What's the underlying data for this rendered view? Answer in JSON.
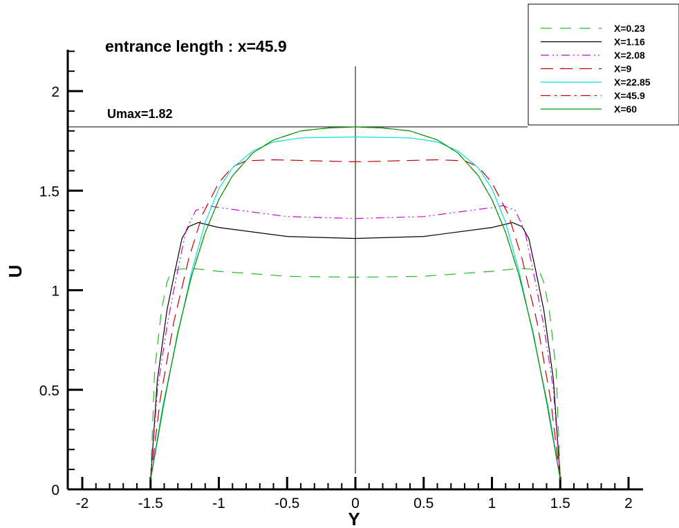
{
  "chart_data": {
    "type": "line",
    "title": "entrance length : x=45.9",
    "xlabel": "Y",
    "ylabel": "U",
    "xlim": [
      -2.0,
      2.0
    ],
    "ylim": [
      0,
      2.0
    ],
    "xticks": [
      "-2",
      "-1.5",
      "-1",
      "-0.5",
      "0",
      "0.5",
      "1",
      "1.5",
      "2"
    ],
    "yticks": [
      "0",
      "0.5",
      "1",
      "1.5",
      "2"
    ],
    "grid": false,
    "legend_position": "top-right",
    "annotations": [
      {
        "text": "Umax=1.82",
        "y": 1.82
      }
    ],
    "series": [
      {
        "name": "X=0.23",
        "color": "#22bb22",
        "dash": "dashed",
        "points": [
          [
            -1.5,
            0.05
          ],
          [
            -1.47,
            0.6
          ],
          [
            -1.42,
            0.9
          ],
          [
            -1.38,
            1.04
          ],
          [
            -1.35,
            1.09
          ],
          [
            -1.3,
            1.105
          ],
          [
            -1.2,
            1.11
          ],
          [
            -1.0,
            1.095
          ],
          [
            -0.5,
            1.07
          ],
          [
            0,
            1.065
          ],
          [
            0.5,
            1.07
          ],
          [
            1.0,
            1.095
          ],
          [
            1.2,
            1.11
          ],
          [
            1.3,
            1.105
          ],
          [
            1.35,
            1.09
          ],
          [
            1.38,
            1.04
          ],
          [
            1.42,
            0.9
          ],
          [
            1.47,
            0.6
          ],
          [
            1.5,
            0.05
          ]
        ]
      },
      {
        "name": "X=1.16",
        "color": "#000000",
        "dash": "solid",
        "points": [
          [
            -1.5,
            0.05
          ],
          [
            -1.45,
            0.55
          ],
          [
            -1.38,
            0.9
          ],
          [
            -1.32,
            1.1
          ],
          [
            -1.27,
            1.26
          ],
          [
            -1.22,
            1.32
          ],
          [
            -1.15,
            1.34
          ],
          [
            -1.0,
            1.315
          ],
          [
            -0.5,
            1.27
          ],
          [
            0,
            1.26
          ],
          [
            0.5,
            1.27
          ],
          [
            1.0,
            1.315
          ],
          [
            1.15,
            1.34
          ],
          [
            1.22,
            1.32
          ],
          [
            1.27,
            1.26
          ],
          [
            1.32,
            1.1
          ],
          [
            1.38,
            0.9
          ],
          [
            1.45,
            0.55
          ],
          [
            1.5,
            0.05
          ]
        ]
      },
      {
        "name": "X=2.08",
        "color": "#d000d0",
        "dash": "dashdotdot",
        "points": [
          [
            -1.5,
            0.05
          ],
          [
            -1.45,
            0.5
          ],
          [
            -1.38,
            0.82
          ],
          [
            -1.31,
            1.07
          ],
          [
            -1.24,
            1.3
          ],
          [
            -1.17,
            1.4
          ],
          [
            -1.08,
            1.425
          ],
          [
            -1.0,
            1.415
          ],
          [
            -0.5,
            1.37
          ],
          [
            0,
            1.36
          ],
          [
            0.5,
            1.37
          ],
          [
            1.0,
            1.415
          ],
          [
            1.08,
            1.425
          ],
          [
            1.17,
            1.4
          ],
          [
            1.24,
            1.3
          ],
          [
            1.31,
            1.07
          ],
          [
            1.38,
            0.82
          ],
          [
            1.45,
            0.5
          ],
          [
            1.5,
            0.05
          ]
        ]
      },
      {
        "name": "X=9",
        "color": "#c00000",
        "dash": "longdash",
        "points": [
          [
            -1.5,
            0.05
          ],
          [
            -1.43,
            0.45
          ],
          [
            -1.33,
            0.84
          ],
          [
            -1.22,
            1.16
          ],
          [
            -1.12,
            1.38
          ],
          [
            -1.0,
            1.54
          ],
          [
            -0.9,
            1.62
          ],
          [
            -0.8,
            1.65
          ],
          [
            -0.6,
            1.655
          ],
          [
            -0.3,
            1.65
          ],
          [
            0,
            1.645
          ],
          [
            0.3,
            1.65
          ],
          [
            0.6,
            1.655
          ],
          [
            0.8,
            1.65
          ],
          [
            0.9,
            1.62
          ],
          [
            1.0,
            1.54
          ],
          [
            1.12,
            1.38
          ],
          [
            1.22,
            1.16
          ],
          [
            1.33,
            0.84
          ],
          [
            1.43,
            0.45
          ],
          [
            1.5,
            0.05
          ]
        ]
      },
      {
        "name": "X=22.85",
        "color": "#00e0e0",
        "dash": "solid",
        "points": [
          [
            -1.5,
            0.05
          ],
          [
            -1.41,
            0.42
          ],
          [
            -1.3,
            0.78
          ],
          [
            -1.2,
            1.09
          ],
          [
            -1.1,
            1.34
          ],
          [
            -1.0,
            1.51
          ],
          [
            -0.9,
            1.615
          ],
          [
            -0.75,
            1.7
          ],
          [
            -0.6,
            1.745
          ],
          [
            -0.4,
            1.765
          ],
          [
            0,
            1.77
          ],
          [
            0.4,
            1.765
          ],
          [
            0.6,
            1.745
          ],
          [
            0.75,
            1.7
          ],
          [
            0.9,
            1.615
          ],
          [
            1.0,
            1.51
          ],
          [
            1.1,
            1.34
          ],
          [
            1.2,
            1.09
          ],
          [
            1.3,
            0.78
          ],
          [
            1.41,
            0.42
          ],
          [
            1.5,
            0.05
          ]
        ]
      },
      {
        "name": "X=45.9",
        "color": "#c00000",
        "dash": "dashdot",
        "points": [
          [
            -1.5,
            0.05
          ],
          [
            -1.4,
            0.44
          ],
          [
            -1.3,
            0.79
          ],
          [
            -1.2,
            1.07
          ],
          [
            -1.1,
            1.29
          ],
          [
            -1.0,
            1.455
          ],
          [
            -0.9,
            1.575
          ],
          [
            -0.75,
            1.69
          ],
          [
            -0.6,
            1.755
          ],
          [
            -0.4,
            1.8
          ],
          [
            -0.2,
            1.815
          ],
          [
            0,
            1.82
          ],
          [
            0.2,
            1.815
          ],
          [
            0.4,
            1.8
          ],
          [
            0.6,
            1.755
          ],
          [
            0.75,
            1.69
          ],
          [
            0.9,
            1.575
          ],
          [
            1.0,
            1.455
          ],
          [
            1.1,
            1.29
          ],
          [
            1.2,
            1.07
          ],
          [
            1.3,
            0.79
          ],
          [
            1.4,
            0.44
          ],
          [
            1.5,
            0.05
          ]
        ]
      },
      {
        "name": "X=60",
        "color": "#009900",
        "dash": "solid",
        "points": [
          [
            -1.5,
            0.05
          ],
          [
            -1.4,
            0.44
          ],
          [
            -1.3,
            0.79
          ],
          [
            -1.2,
            1.07
          ],
          [
            -1.1,
            1.29
          ],
          [
            -1.0,
            1.455
          ],
          [
            -0.9,
            1.575
          ],
          [
            -0.75,
            1.69
          ],
          [
            -0.6,
            1.755
          ],
          [
            -0.4,
            1.8
          ],
          [
            -0.2,
            1.815
          ],
          [
            0,
            1.82
          ],
          [
            0.2,
            1.815
          ],
          [
            0.4,
            1.8
          ],
          [
            0.6,
            1.755
          ],
          [
            0.75,
            1.69
          ],
          [
            0.9,
            1.575
          ],
          [
            1.0,
            1.455
          ],
          [
            1.1,
            1.29
          ],
          [
            1.2,
            1.07
          ],
          [
            1.3,
            0.79
          ],
          [
            1.4,
            0.44
          ],
          [
            1.5,
            0.05
          ]
        ]
      }
    ]
  }
}
